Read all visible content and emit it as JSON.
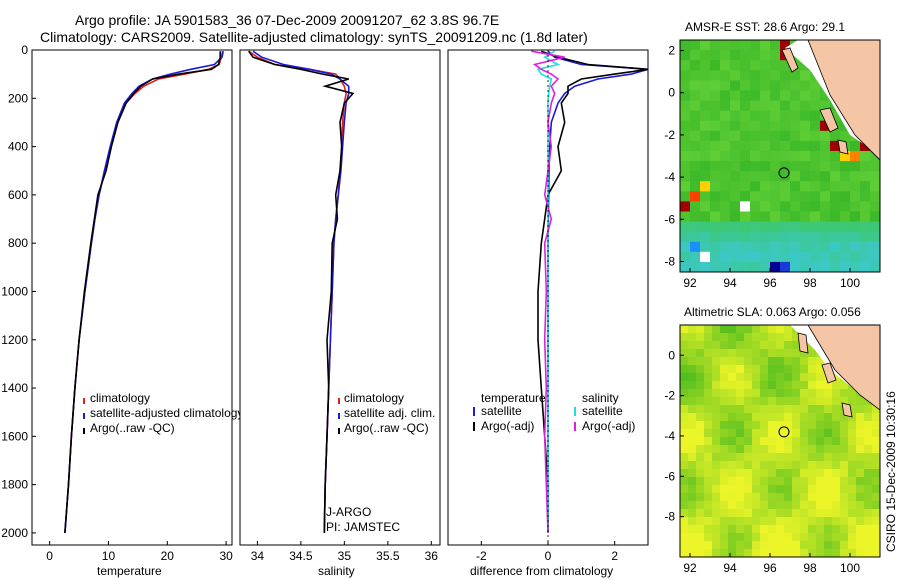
{
  "header": {
    "line1": "Argo profile: JA 5901583_36 07-Dec-2009 20091207_62 3.8S 96.7E",
    "line2": "Climatology: CARS2009. Satellite-adjusted climatology: synTS_20091209.nc (1.8d later)"
  },
  "side_stamp": "CSIRO 15-Dec-2009 10:30:16",
  "colors": {
    "clim": "#e02020",
    "sat": "#1a1ad8",
    "argo": "#000000",
    "sal_sat": "#22dddd",
    "sal_argo": "#e020e0"
  },
  "chart_data": [
    {
      "id": "temperature",
      "type": "line",
      "xlabel": "temperature",
      "ylabel": "",
      "xlim": [
        -3,
        31
      ],
      "ylim": [
        2050,
        0
      ],
      "xticks": [
        "0",
        "10",
        "20",
        "30"
      ],
      "yticks": [
        "0",
        "200",
        "400",
        "600",
        "800",
        "1000",
        "1200",
        "1400",
        "1600",
        "1800",
        "2000"
      ],
      "legend": [
        "climatology",
        "satellite-adjusted climatology",
        "Argo(..raw -QC)"
      ],
      "depth": [
        5,
        30,
        60,
        80,
        100,
        120,
        150,
        180,
        220,
        300,
        400,
        500,
        600,
        700,
        800,
        1000,
        1200,
        1400,
        1600,
        1800,
        2000
      ],
      "series": [
        {
          "name": "climatology",
          "values": [
            29.4,
            29.2,
            28.8,
            27.0,
            23.0,
            18.5,
            16.0,
            14.5,
            13.0,
            11.5,
            10.4,
            9.4,
            8.4,
            7.7,
            7.1,
            6.0,
            5.0,
            4.3,
            3.7,
            3.2,
            2.6
          ]
        },
        {
          "name": "satellite-adjusted climatology",
          "values": [
            29.5,
            29.3,
            28.0,
            24.0,
            20.5,
            17.5,
            15.2,
            14.0,
            12.7,
            11.4,
            10.3,
            9.3,
            8.4,
            7.7,
            7.1,
            6.0,
            5.0,
            4.3,
            3.7,
            3.2,
            2.6
          ]
        },
        {
          "name": "Argo(..raw -QC)",
          "values": [
            29.0,
            29.0,
            28.7,
            27.5,
            22.0,
            17.5,
            15.5,
            14.3,
            13.0,
            11.6,
            10.5,
            9.6,
            8.2,
            7.6,
            7.0,
            5.9,
            5.0,
            4.3,
            3.7,
            3.2,
            2.6
          ]
        }
      ]
    },
    {
      "id": "salinity",
      "type": "line",
      "xlabel": "salinity",
      "ylabel": "",
      "xlim": [
        33.8,
        36.1
      ],
      "ylim": [
        2050,
        0
      ],
      "xticks": [
        "34",
        "34.5",
        "35",
        "35.5",
        "36"
      ],
      "legend": [
        "climatology",
        "satellite adj. clim.",
        "Argo(..raw -QC)"
      ],
      "annotations": [
        "J-ARGO",
        "PI: JAMSTEC"
      ],
      "depth": [
        5,
        30,
        60,
        80,
        100,
        120,
        150,
        180,
        220,
        300,
        400,
        500,
        600,
        700,
        800,
        1000,
        1200,
        1400,
        1600,
        1800,
        2000
      ],
      "series": [
        {
          "name": "climatology",
          "values": [
            33.9,
            34.0,
            34.2,
            34.6,
            34.9,
            34.95,
            35.0,
            35.02,
            35.0,
            34.98,
            34.97,
            34.95,
            34.93,
            34.9,
            34.88,
            34.86,
            34.84,
            34.82,
            34.8,
            34.78,
            34.77
          ]
        },
        {
          "name": "satellite adj. clim.",
          "values": [
            33.95,
            34.05,
            34.3,
            34.6,
            34.85,
            34.95,
            35.05,
            35.05,
            35.02,
            35.0,
            34.98,
            34.96,
            34.93,
            34.9,
            34.88,
            34.86,
            34.84,
            34.82,
            34.8,
            34.78,
            34.77
          ]
        },
        {
          "name": "Argo(..raw -QC)",
          "values": [
            33.9,
            33.95,
            34.2,
            34.5,
            34.75,
            35.05,
            34.78,
            35.1,
            35.0,
            34.95,
            34.97,
            34.95,
            34.9,
            34.92,
            34.86,
            34.85,
            34.8,
            34.82,
            34.8,
            34.78,
            34.77
          ]
        }
      ]
    },
    {
      "id": "difference",
      "type": "line",
      "xlabel": "difference from climatology",
      "ylabel": "",
      "xlim": [
        -3,
        3
      ],
      "ylim": [
        2050,
        0
      ],
      "xticks": [
        "-2",
        "0",
        "2"
      ],
      "legend_temperature": [
        "temperature",
        "satellite",
        "Argo(-adj)"
      ],
      "legend_salinity": [
        "salinity",
        "satellite",
        "Argo(-adj)"
      ],
      "depth": [
        5,
        30,
        60,
        80,
        100,
        120,
        150,
        180,
        220,
        300,
        400,
        500,
        600,
        700,
        800,
        1000,
        1200,
        1400,
        1600,
        1800,
        2000
      ],
      "series": [
        {
          "name": "temperature satellite",
          "values": [
            0.0,
            0.2,
            1.0,
            3.0,
            2.5,
            1.5,
            0.8,
            0.5,
            0.3,
            0.1,
            0.05,
            0.03,
            0.02,
            0.01,
            0.0,
            0.0,
            0.0,
            0.0,
            0.0,
            0.0,
            0.0
          ]
        },
        {
          "name": "temperature Argo(-adj)",
          "values": [
            -0.2,
            0.3,
            1.2,
            3.0,
            2.0,
            1.0,
            0.6,
            0.6,
            0.4,
            0.5,
            0.3,
            0.4,
            0.0,
            -0.1,
            -0.2,
            -0.3,
            -0.3,
            -0.2,
            -0.1,
            0.0,
            0.0
          ]
        },
        {
          "name": "salinity satellite",
          "values": [
            0.2,
            -0.1,
            0.3,
            -0.3,
            -0.2,
            0.1,
            0.05,
            0.02,
            0.0,
            0.0,
            0.0,
            0.0,
            0.0,
            0.0,
            0.0,
            0.0,
            0.0,
            0.0,
            0.0,
            0.0,
            0.0
          ]
        },
        {
          "name": "salinity Argo(-adj)",
          "values": [
            -0.5,
            0.5,
            -0.4,
            -0.2,
            0.1,
            0.3,
            0.1,
            0.2,
            0.1,
            0.0,
            0.1,
            0.0,
            -0.1,
            0.1,
            -0.1,
            -0.05,
            -0.1,
            -0.05,
            -0.1,
            -0.05,
            0.0
          ]
        }
      ]
    },
    {
      "id": "sst_map",
      "type": "heatmap",
      "title": "AMSR-E SST: 28.6 Argo: 29.1",
      "xlim": [
        91.5,
        101.5
      ],
      "ylim": [
        -8.5,
        2.5
      ],
      "xticks": [
        "92",
        "94",
        "96",
        "98",
        "100"
      ],
      "yticks": [
        "2",
        "0",
        "-2",
        "-4",
        "-6",
        "-8"
      ],
      "marker": {
        "lon": 96.7,
        "lat": -3.8
      }
    },
    {
      "id": "sla_map",
      "type": "heatmap",
      "title": "Altimetric SLA: 0.063 Argo: 0.056",
      "xlim": [
        91.5,
        101.5
      ],
      "ylim": [
        -10,
        1.5
      ],
      "xticks": [
        "92",
        "94",
        "96",
        "98",
        "100"
      ],
      "yticks": [
        "0",
        "-2",
        "-4",
        "-6",
        "-8"
      ],
      "marker": {
        "lon": 96.7,
        "lat": -3.8
      }
    }
  ]
}
